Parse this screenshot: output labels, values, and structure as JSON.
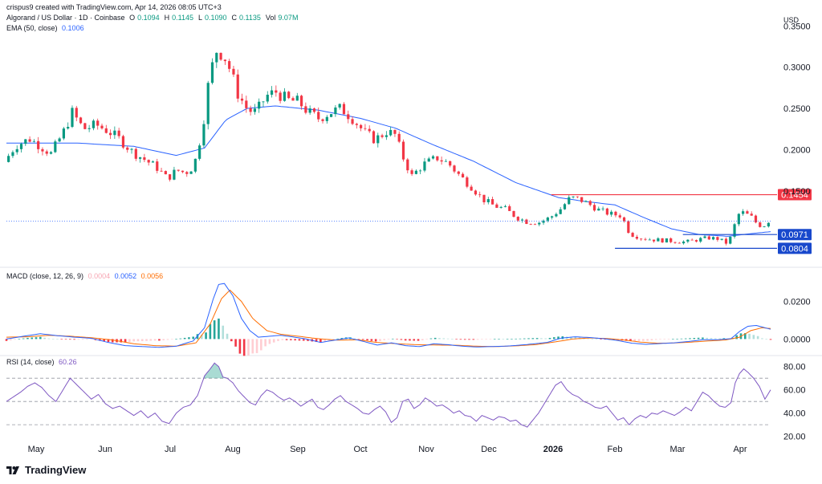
{
  "header": {
    "created": "crispus9 created with TradingView.com, Apr 14, 2026 08:05 UTC+3",
    "symbol": "Algorand / US Dollar · 1D · Coinbase",
    "ohlc": [
      {
        "k": "O",
        "v": "0.1094"
      },
      {
        "k": "H",
        "v": "0.1145"
      },
      {
        "k": "L",
        "v": "0.1090"
      },
      {
        "k": "C",
        "v": "0.1135"
      },
      {
        "k": "Vol",
        "v": "9.07M"
      }
    ],
    "ema_label": "EMA (50, close)",
    "ema_value": "0.1006",
    "macd_label": "MACD (close, 12, 26, 9)",
    "macd_values": [
      "0.0004",
      "0.0052",
      "0.0056"
    ],
    "rsi_label": "RSI (14, close)",
    "rsi_value": "60.26"
  },
  "currency": "USD",
  "brand": "TradingView",
  "colors": {
    "up": "#089981",
    "down": "#f23645",
    "ema": "#2962ff",
    "macd": "#2962ff",
    "signal": "#ff6d00",
    "rsi": "#7e57c2",
    "resistance": "#f23645",
    "support": "#1848cc"
  },
  "chart_data": {
    "type": "candlestick",
    "x_labels": [
      "May",
      "Jun",
      "Jul",
      "Aug",
      "Sep",
      "Oct",
      "Nov",
      "Dec",
      "2026",
      "Feb",
      "Mar",
      "Apr"
    ],
    "price_axis": {
      "ticks": [
        "0.3500",
        "0.3000",
        "0.2500",
        "0.2000",
        "0.1500"
      ],
      "ylim": [
        0.072,
        0.36
      ]
    },
    "price_path": [
      [
        0,
        0.185
      ],
      [
        8,
        0.205
      ],
      [
        18,
        0.213
      ],
      [
        25,
        0.205
      ],
      [
        33,
        0.195
      ],
      [
        42,
        0.222
      ],
      [
        48,
        0.245
      ],
      [
        56,
        0.225
      ],
      [
        65,
        0.23
      ],
      [
        74,
        0.222
      ],
      [
        82,
        0.212
      ],
      [
        90,
        0.198
      ],
      [
        100,
        0.187
      ],
      [
        108,
        0.178
      ],
      [
        115,
        0.165
      ],
      [
        122,
        0.175
      ],
      [
        128,
        0.172
      ],
      [
        134,
        0.18
      ],
      [
        140,
        0.225
      ],
      [
        145,
        0.29
      ],
      [
        150,
        0.32
      ],
      [
        155,
        0.315
      ],
      [
        160,
        0.295
      ],
      [
        165,
        0.268
      ],
      [
        172,
        0.248
      ],
      [
        178,
        0.245
      ],
      [
        185,
        0.265
      ],
      [
        192,
        0.27
      ],
      [
        200,
        0.26
      ],
      [
        208,
        0.258
      ],
      [
        215,
        0.245
      ],
      [
        222,
        0.238
      ],
      [
        230,
        0.245
      ],
      [
        238,
        0.25
      ],
      [
        246,
        0.238
      ],
      [
        255,
        0.22
      ],
      [
        262,
        0.212
      ],
      [
        270,
        0.222
      ],
      [
        276,
        0.218
      ],
      [
        282,
        0.19
      ],
      [
        288,
        0.168
      ],
      [
        296,
        0.182
      ],
      [
        306,
        0.19
      ],
      [
        314,
        0.183
      ],
      [
        322,
        0.168
      ],
      [
        330,
        0.155
      ],
      [
        338,
        0.14
      ],
      [
        346,
        0.132
      ],
      [
        354,
        0.128
      ],
      [
        362,
        0.118
      ],
      [
        370,
        0.112
      ],
      [
        378,
        0.112
      ],
      [
        386,
        0.118
      ],
      [
        393,
        0.128
      ],
      [
        400,
        0.142
      ],
      [
        406,
        0.14
      ],
      [
        412,
        0.135
      ],
      [
        420,
        0.127
      ],
      [
        428,
        0.122
      ],
      [
        436,
        0.12
      ],
      [
        442,
        0.098
      ],
      [
        450,
        0.093
      ],
      [
        458,
        0.091
      ],
      [
        466,
        0.09
      ],
      [
        474,
        0.089
      ],
      [
        482,
        0.088
      ],
      [
        490,
        0.091
      ],
      [
        498,
        0.093
      ],
      [
        504,
        0.092
      ],
      [
        510,
        0.087
      ],
      [
        514,
        0.095
      ],
      [
        517,
        0.115
      ],
      [
        520,
        0.125
      ],
      [
        524,
        0.122
      ],
      [
        528,
        0.118
      ],
      [
        532,
        0.11
      ],
      [
        536,
        0.107
      ],
      [
        540,
        0.1135
      ]
    ],
    "ema_path": [
      [
        0,
        0.208
      ],
      [
        50,
        0.208
      ],
      [
        90,
        0.204
      ],
      [
        120,
        0.193
      ],
      [
        140,
        0.202
      ],
      [
        155,
        0.236
      ],
      [
        170,
        0.25
      ],
      [
        190,
        0.253
      ],
      [
        220,
        0.248
      ],
      [
        250,
        0.238
      ],
      [
        275,
        0.226
      ],
      [
        300,
        0.207
      ],
      [
        330,
        0.186
      ],
      [
        360,
        0.16
      ],
      [
        390,
        0.142
      ],
      [
        410,
        0.137
      ],
      [
        430,
        0.133
      ],
      [
        450,
        0.118
      ],
      [
        470,
        0.104
      ],
      [
        490,
        0.097
      ],
      [
        510,
        0.095
      ],
      [
        525,
        0.098
      ],
      [
        540,
        0.1006
      ]
    ],
    "levels": [
      {
        "label": "0.1454",
        "value": 0.1454,
        "color": "#f23645",
        "from_day": 385
      },
      {
        "label": "0.0971",
        "value": 0.0971,
        "color": "#1848cc",
        "from_day": 478
      },
      {
        "label": "0.0804",
        "value": 0.0804,
        "color": "#1848cc",
        "from_day": 430
      }
    ],
    "macd_axis": {
      "ticks": [
        "0.0200",
        "0.0000"
      ],
      "ylim": [
        -0.0075,
        0.033
      ]
    },
    "macd_path": [
      [
        0,
        0.0
      ],
      [
        12,
        0.0015
      ],
      [
        24,
        0.0028
      ],
      [
        36,
        0.0018
      ],
      [
        48,
        0.001
      ],
      [
        60,
        0.0004
      ],
      [
        72,
        -0.0018
      ],
      [
        84,
        -0.0035
      ],
      [
        96,
        -0.004
      ],
      [
        108,
        -0.0044
      ],
      [
        120,
        -0.0038
      ],
      [
        132,
        -0.001
      ],
      [
        140,
        0.006
      ],
      [
        146,
        0.021
      ],
      [
        150,
        0.029
      ],
      [
        154,
        0.0295
      ],
      [
        160,
        0.023
      ],
      [
        166,
        0.011
      ],
      [
        172,
        0.0045
      ],
      [
        178,
        0.001
      ],
      [
        186,
        0.0015
      ],
      [
        194,
        0.002
      ],
      [
        202,
        0.0012
      ],
      [
        212,
        0.0
      ],
      [
        222,
        -0.0018
      ],
      [
        232,
        -0.0006
      ],
      [
        242,
        0.0006
      ],
      [
        252,
        -0.0012
      ],
      [
        262,
        -0.0032
      ],
      [
        272,
        -0.002
      ],
      [
        282,
        -0.0035
      ],
      [
        292,
        -0.004
      ],
      [
        302,
        -0.0025
      ],
      [
        312,
        -0.003
      ],
      [
        322,
        -0.0038
      ],
      [
        332,
        -0.0042
      ],
      [
        342,
        -0.004
      ],
      [
        352,
        -0.0038
      ],
      [
        362,
        -0.0033
      ],
      [
        372,
        -0.0026
      ],
      [
        382,
        -0.0018
      ],
      [
        392,
        0.0005
      ],
      [
        402,
        0.0012
      ],
      [
        412,
        0.0008
      ],
      [
        422,
        0.0002
      ],
      [
        432,
        -0.0008
      ],
      [
        442,
        -0.0022
      ],
      [
        452,
        -0.0028
      ],
      [
        462,
        -0.0024
      ],
      [
        472,
        -0.002
      ],
      [
        482,
        -0.0013
      ],
      [
        492,
        -0.0004
      ],
      [
        502,
        -0.0004
      ],
      [
        512,
        0.0002
      ],
      [
        518,
        0.004
      ],
      [
        524,
        0.0068
      ],
      [
        530,
        0.0072
      ],
      [
        536,
        0.006
      ],
      [
        540,
        0.0052
      ]
    ],
    "signal_path": [
      [
        0,
        0.001
      ],
      [
        15,
        0.0012
      ],
      [
        30,
        0.002
      ],
      [
        45,
        0.0015
      ],
      [
        60,
        0.0007
      ],
      [
        75,
        -0.0005
      ],
      [
        90,
        -0.0025
      ],
      [
        105,
        -0.0035
      ],
      [
        120,
        -0.0038
      ],
      [
        134,
        -0.002
      ],
      [
        144,
        0.008
      ],
      [
        152,
        0.0215
      ],
      [
        158,
        0.026
      ],
      [
        166,
        0.02
      ],
      [
        174,
        0.011
      ],
      [
        184,
        0.0045
      ],
      [
        194,
        0.0025
      ],
      [
        206,
        0.0015
      ],
      [
        220,
        0.0002
      ],
      [
        234,
        -0.0006
      ],
      [
        248,
        -0.0004
      ],
      [
        262,
        -0.0018
      ],
      [
        276,
        -0.0025
      ],
      [
        290,
        -0.003
      ],
      [
        304,
        -0.0032
      ],
      [
        318,
        -0.0033
      ],
      [
        332,
        -0.0038
      ],
      [
        346,
        -0.004
      ],
      [
        360,
        -0.0036
      ],
      [
        374,
        -0.003
      ],
      [
        388,
        -0.0015
      ],
      [
        400,
        0.0
      ],
      [
        412,
        0.0006
      ],
      [
        424,
        0.0003
      ],
      [
        436,
        -0.0005
      ],
      [
        448,
        -0.0016
      ],
      [
        460,
        -0.0022
      ],
      [
        472,
        -0.0021
      ],
      [
        484,
        -0.0016
      ],
      [
        496,
        -0.001
      ],
      [
        508,
        -0.0005
      ],
      [
        518,
        0.001
      ],
      [
        526,
        0.0045
      ],
      [
        534,
        0.006
      ],
      [
        540,
        0.0056
      ]
    ],
    "rsi_axis": {
      "ticks": [
        "80.00",
        "60.00",
        "40.00",
        "20.00"
      ],
      "ylim": [
        17,
        86
      ],
      "bands": [
        70,
        50,
        30
      ]
    },
    "rsi_path": [
      [
        0,
        50
      ],
      [
        5,
        54
      ],
      [
        10,
        58
      ],
      [
        15,
        63
      ],
      [
        20,
        66
      ],
      [
        25,
        62
      ],
      [
        30,
        55
      ],
      [
        35,
        50
      ],
      [
        40,
        60
      ],
      [
        45,
        70
      ],
      [
        50,
        64
      ],
      [
        55,
        58
      ],
      [
        60,
        52
      ],
      [
        65,
        56
      ],
      [
        70,
        48
      ],
      [
        75,
        44
      ],
      [
        80,
        46
      ],
      [
        85,
        42
      ],
      [
        90,
        38
      ],
      [
        95,
        42
      ],
      [
        100,
        36
      ],
      [
        105,
        40
      ],
      [
        110,
        33
      ],
      [
        115,
        31
      ],
      [
        120,
        40
      ],
      [
        125,
        45
      ],
      [
        130,
        47
      ],
      [
        135,
        55
      ],
      [
        140,
        72
      ],
      [
        144,
        78
      ],
      [
        147,
        83
      ],
      [
        150,
        80
      ],
      [
        153,
        71
      ],
      [
        156,
        70
      ],
      [
        160,
        66
      ],
      [
        164,
        59
      ],
      [
        168,
        54
      ],
      [
        172,
        49
      ],
      [
        176,
        47
      ],
      [
        180,
        55
      ],
      [
        184,
        60
      ],
      [
        188,
        58
      ],
      [
        192,
        54
      ],
      [
        196,
        51
      ],
      [
        200,
        53
      ],
      [
        204,
        50
      ],
      [
        208,
        46
      ],
      [
        212,
        49
      ],
      [
        216,
        52
      ],
      [
        220,
        45
      ],
      [
        224,
        43
      ],
      [
        228,
        47
      ],
      [
        232,
        52
      ],
      [
        236,
        55
      ],
      [
        240,
        50
      ],
      [
        244,
        47
      ],
      [
        248,
        44
      ],
      [
        252,
        40
      ],
      [
        256,
        39
      ],
      [
        260,
        43
      ],
      [
        264,
        46
      ],
      [
        268,
        41
      ],
      [
        272,
        32
      ],
      [
        276,
        36
      ],
      [
        280,
        50
      ],
      [
        284,
        52
      ],
      [
        288,
        44
      ],
      [
        292,
        47
      ],
      [
        296,
        53
      ],
      [
        300,
        50
      ],
      [
        304,
        46
      ],
      [
        308,
        47
      ],
      [
        312,
        44
      ],
      [
        316,
        40
      ],
      [
        320,
        42
      ],
      [
        324,
        38
      ],
      [
        328,
        37
      ],
      [
        332,
        33
      ],
      [
        336,
        38
      ],
      [
        340,
        36
      ],
      [
        344,
        34
      ],
      [
        348,
        37
      ],
      [
        352,
        36
      ],
      [
        356,
        33
      ],
      [
        360,
        34
      ],
      [
        364,
        30
      ],
      [
        368,
        28
      ],
      [
        372,
        34
      ],
      [
        376,
        40
      ],
      [
        380,
        48
      ],
      [
        384,
        56
      ],
      [
        388,
        64
      ],
      [
        392,
        67
      ],
      [
        396,
        60
      ],
      [
        400,
        56
      ],
      [
        404,
        54
      ],
      [
        408,
        50
      ],
      [
        412,
        48
      ],
      [
        416,
        45
      ],
      [
        420,
        44
      ],
      [
        424,
        46
      ],
      [
        428,
        40
      ],
      [
        432,
        34
      ],
      [
        436,
        36
      ],
      [
        440,
        30
      ],
      [
        444,
        35
      ],
      [
        448,
        38
      ],
      [
        452,
        36
      ],
      [
        456,
        40
      ],
      [
        460,
        39
      ],
      [
        464,
        42
      ],
      [
        468,
        40
      ],
      [
        472,
        38
      ],
      [
        476,
        41
      ],
      [
        480,
        45
      ],
      [
        484,
        42
      ],
      [
        488,
        50
      ],
      [
        492,
        58
      ],
      [
        496,
        55
      ],
      [
        500,
        50
      ],
      [
        504,
        46
      ],
      [
        508,
        45
      ],
      [
        512,
        49
      ],
      [
        515,
        66
      ],
      [
        518,
        74
      ],
      [
        521,
        78
      ],
      [
        524,
        75
      ],
      [
        528,
        70
      ],
      [
        532,
        63
      ],
      [
        536,
        52
      ],
      [
        540,
        60
      ]
    ]
  }
}
